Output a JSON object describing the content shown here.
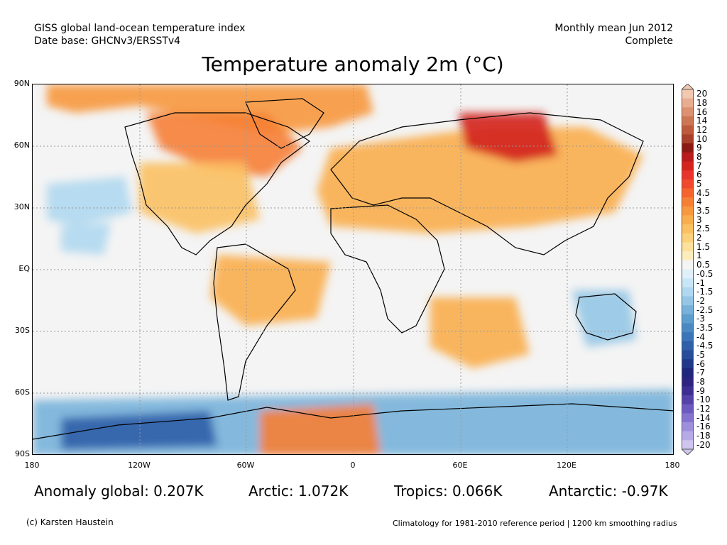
{
  "header": {
    "line1": "GISS global land-ocean temperature index",
    "line2": "Date base: GHCNv3/ERSSTv4",
    "right1": "Monthly mean Jun 2012",
    "right2": "Complete"
  },
  "title": "Temperature anomaly 2m (°C)",
  "lat_labels": [
    "90N",
    "60N",
    "30N",
    "EQ",
    "30S",
    "60S",
    "90S"
  ],
  "lon_labels": [
    "180",
    "120W",
    "60W",
    "0",
    "60E",
    "120E",
    "180"
  ],
  "colorbar": {
    "labels": [
      "20",
      "18",
      "16",
      "14",
      "12",
      "10",
      "9",
      "8",
      "7",
      "6",
      "5",
      "4.5",
      "4",
      "3.5",
      "3",
      "2.5",
      "2",
      "1.5",
      "1",
      "0.5",
      "-0.5",
      "-1",
      "-1.5",
      "-2",
      "-2.5",
      "-3",
      "-3.5",
      "-4",
      "-4.5",
      "-5",
      "-6",
      "-7",
      "-8",
      "-9",
      "-10",
      "-12",
      "-14",
      "-16",
      "-18",
      "-20"
    ],
    "colors": [
      "#f2c8b0",
      "#e8ad90",
      "#dc9170",
      "#ce7554",
      "#bd5a3c",
      "#a8402a",
      "#8c1a14",
      "#b81c1c",
      "#d3241e",
      "#e8342a",
      "#f04a2c",
      "#f5642e",
      "#f67f36",
      "#f7983f",
      "#f9ae4e",
      "#fbc062",
      "#fcd17b",
      "#fde09a",
      "#fdedbe",
      "#f4f4f4",
      "#dff0fa",
      "#c9e6f7",
      "#b0d8f0",
      "#95c6e6",
      "#78b2da",
      "#5e9ecf",
      "#4b89c3",
      "#3b74b7",
      "#2f5fa9",
      "#264c9a",
      "#22378a",
      "#1f267c",
      "#2c2480",
      "#3d2e92",
      "#5442a8",
      "#6c5abe",
      "#8474cf",
      "#9d8fdc",
      "#b6aae6",
      "#cfc5ef"
    ]
  },
  "map_regions": [
    {
      "name": "arctic-warm-band",
      "color": "#f7983f"
    },
    {
      "name": "siberia-hot-spot",
      "color": "#d3241e"
    },
    {
      "name": "canada-warm",
      "color": "#f67f36"
    },
    {
      "name": "europe-warm",
      "color": "#f9ae4e"
    },
    {
      "name": "usa-warm",
      "color": "#fbc062"
    },
    {
      "name": "north-pacific-cool",
      "color": "#b0d8f0"
    },
    {
      "name": "australia-cool",
      "color": "#95c6e6"
    },
    {
      "name": "southern-ocean-cool",
      "color": "#78b2da"
    },
    {
      "name": "west-antarctic-cold",
      "color": "#2f5fa9"
    },
    {
      "name": "weddell-sea-warm",
      "color": "#f67f36"
    }
  ],
  "stats": {
    "global": "Anomaly global: 0.207K",
    "arctic": "Arctic: 1.072K",
    "tropics": "Tropics: 0.066K",
    "antarctic": "Antarctic: -0.97K"
  },
  "footer": {
    "credit": "(c) Karsten Haustein",
    "climatology": "Climatology for 1981-2010 reference period | 1200 km smoothing radius"
  }
}
